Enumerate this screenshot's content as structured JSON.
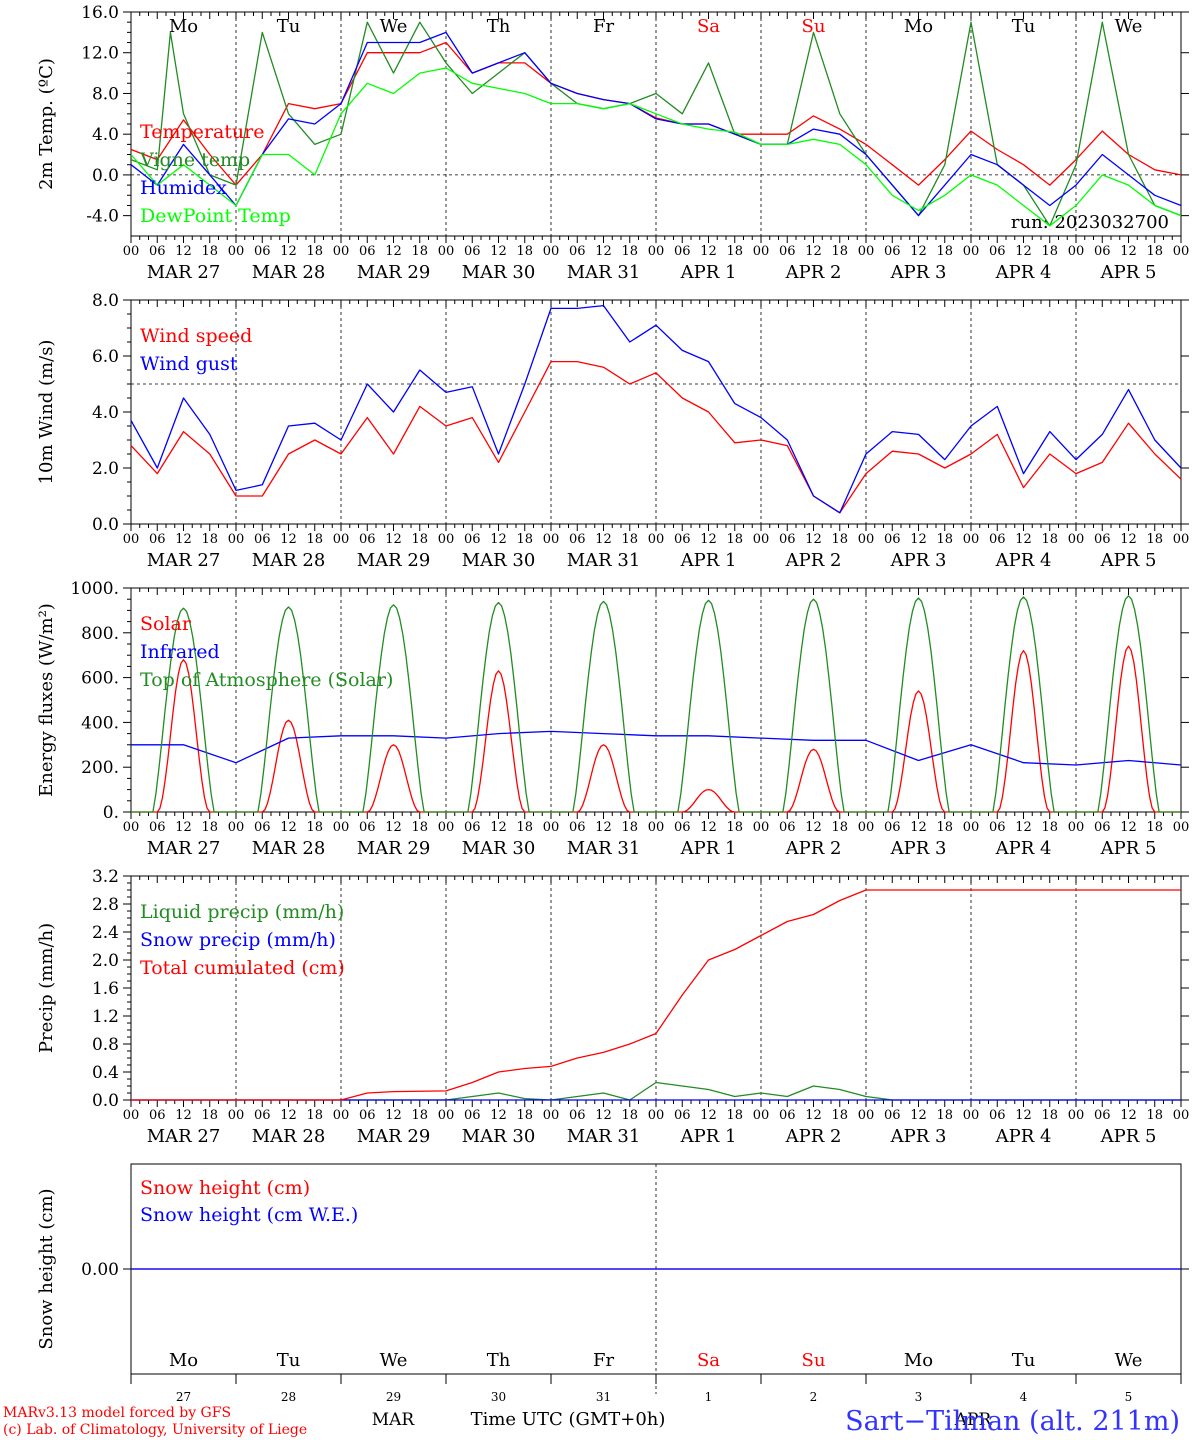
{
  "location": "Sart−Tilman (alt. 211m)",
  "model_credit": "MARv3.13 model forced by GFS",
  "lab_credit": "(c) Lab. of Climatology, University of Liege",
  "time_axis_label": "Time UTC (GMT+0h)",
  "month_labels": [
    "MAR",
    "APR"
  ],
  "run_label": "run: 2023032700",
  "days": [
    {
      "dow": "Mo",
      "date": "MAR 27",
      "num": "27",
      "weekend": false
    },
    {
      "dow": "Tu",
      "date": "MAR 28",
      "num": "28",
      "weekend": false
    },
    {
      "dow": "We",
      "date": "MAR 29",
      "num": "29",
      "weekend": false
    },
    {
      "dow": "Th",
      "date": "MAR 30",
      "num": "30",
      "weekend": false
    },
    {
      "dow": "Fr",
      "date": "MAR 31",
      "num": "31",
      "weekend": false
    },
    {
      "dow": "Sa",
      "date": "APR  1",
      "num": "1",
      "weekend": true
    },
    {
      "dow": "Su",
      "date": "APR  2",
      "num": "2",
      "weekend": true
    },
    {
      "dow": "Mo",
      "date": "APR  3",
      "num": "3",
      "weekend": false
    },
    {
      "dow": "Tu",
      "date": "APR  4",
      "num": "4",
      "weekend": false
    },
    {
      "dow": "We",
      "date": "APR  5",
      "num": "5",
      "weekend": false
    }
  ],
  "hour_labels": [
    "00",
    "06",
    "12",
    "18"
  ],
  "colors": {
    "red": "#ff0000",
    "blue": "#0000ff",
    "green": "#00ff00",
    "dark_green": "#228b22",
    "purple": "#7f007f",
    "axis": "#000000",
    "grid": "#000000",
    "location": "#3333ff"
  },
  "chart_data": [
    {
      "type": "line",
      "ylabel": "2m Temp. (ºC)",
      "ylim": [
        -6,
        16
      ],
      "yticks": [
        "16.0",
        "12.0",
        "8.0",
        "4.0",
        "0.0",
        "-4.0"
      ],
      "ytick_values": [
        16,
        12,
        8,
        4,
        0,
        -4
      ],
      "dashed_ref": 0,
      "x_unit": "hours since MAR 27 00 UTC",
      "series": [
        {
          "name": "Temperature",
          "color": "red",
          "x": [
            0,
            6,
            12,
            18,
            24,
            30,
            36,
            42,
            48,
            54,
            60,
            66,
            72,
            78,
            84,
            90,
            96,
            102,
            108,
            114,
            120,
            126,
            132,
            138,
            144,
            150,
            156,
            162,
            168,
            174,
            180,
            186,
            192,
            198,
            204,
            210,
            216,
            222,
            228,
            234,
            240
          ],
          "y": [
            2.5,
            1.5,
            5.4,
            2,
            -1,
            2,
            7,
            6.5,
            7,
            12,
            12,
            12,
            13,
            10,
            11,
            11,
            9,
            8,
            7.4,
            7,
            5.6,
            5,
            5,
            4,
            4,
            4,
            5.8,
            4.5,
            3,
            1,
            -1,
            1.5,
            4.3,
            2.5,
            1,
            -1,
            1.5,
            4.3,
            2,
            0.5,
            0
          ]
        },
        {
          "name": "Vigne temp",
          "color": "dark_green",
          "x": [
            0,
            6,
            9,
            12,
            15,
            18,
            24,
            30,
            36,
            42,
            48,
            54,
            60,
            66,
            72,
            78,
            84,
            90,
            96,
            102,
            108,
            114,
            120,
            126,
            132,
            138,
            144,
            150,
            156,
            162,
            168,
            174,
            180,
            186,
            192,
            198,
            204,
            210,
            216,
            222,
            228,
            234,
            240
          ],
          "y": [
            1.5,
            0.5,
            14,
            6,
            3,
            0,
            -1,
            14,
            6,
            3,
            4,
            15,
            10,
            15,
            11,
            8,
            10,
            12,
            9,
            7,
            6.5,
            7,
            8,
            6,
            11,
            4,
            3,
            3,
            14,
            6,
            2,
            -1,
            -4,
            1,
            15,
            1,
            -1,
            -5,
            1,
            15,
            2,
            -3,
            -4
          ]
        },
        {
          "name": "Humidex",
          "color": "blue",
          "x": [
            0,
            6,
            12,
            18,
            24,
            30,
            36,
            42,
            48,
            54,
            60,
            66,
            72,
            78,
            84,
            90,
            96,
            102,
            108,
            114,
            120,
            126,
            132,
            138,
            144,
            150,
            156,
            162,
            168,
            174,
            180,
            186,
            192,
            198,
            204,
            210,
            216,
            222,
            228,
            234,
            240
          ],
          "y": [
            1,
            -1,
            3,
            0,
            -3,
            2,
            5.5,
            5,
            7,
            13,
            13,
            13,
            14,
            10,
            11,
            12,
            9,
            8,
            7.4,
            7,
            5.5,
            5,
            5,
            4,
            3,
            3,
            4.5,
            4,
            2,
            -1,
            -4,
            -1,
            2,
            1,
            -1,
            -3,
            -1,
            2,
            0,
            -2,
            -3
          ]
        },
        {
          "name": "DewPoint Temp",
          "color": "green",
          "x": [
            0,
            6,
            12,
            18,
            24,
            30,
            36,
            42,
            48,
            54,
            60,
            66,
            72,
            78,
            84,
            90,
            96,
            102,
            108,
            114,
            120,
            126,
            132,
            138,
            144,
            150,
            156,
            162,
            168,
            174,
            180,
            186,
            192,
            198,
            204,
            210,
            216,
            222,
            228,
            234,
            240
          ],
          "y": [
            2,
            -1,
            1,
            -1,
            -3,
            2,
            2,
            0,
            6,
            9,
            8,
            10,
            10.5,
            9,
            8.5,
            8,
            7,
            7,
            6.5,
            7,
            6,
            5,
            4.5,
            4.2,
            3,
            3,
            3.5,
            3,
            1,
            -2,
            -3.5,
            -2,
            0,
            -1,
            -3,
            -5,
            -3,
            0,
            -1,
            -3,
            -4
          ]
        }
      ],
      "legend": [
        "Temperature",
        "Vigne temp",
        "Humidex",
        "DewPoint Temp"
      ],
      "legend_position": "left"
    },
    {
      "type": "line",
      "ylabel": "10m Wind (m/s)",
      "ylim": [
        0,
        8
      ],
      "yticks": [
        "8.0",
        "6.0",
        "4.0",
        "2.0",
        "0.0"
      ],
      "ytick_values": [
        8,
        6,
        4,
        2,
        0
      ],
      "dashed_ref": 5,
      "series": [
        {
          "name": "Wind speed",
          "color": "red",
          "x": [
            0,
            6,
            12,
            18,
            24,
            30,
            36,
            42,
            48,
            54,
            60,
            66,
            72,
            78,
            84,
            90,
            96,
            102,
            108,
            114,
            120,
            126,
            132,
            138,
            144,
            150,
            156,
            162,
            168,
            174,
            180,
            186,
            192,
            198,
            204,
            210,
            216,
            222,
            228,
            234,
            240
          ],
          "y": [
            2.8,
            1.8,
            3.3,
            2.5,
            1,
            1,
            2.5,
            3,
            2.5,
            3.8,
            2.5,
            4.2,
            3.5,
            3.8,
            2.2,
            4,
            5.8,
            5.8,
            5.6,
            5,
            5.4,
            4.5,
            4,
            2.9,
            3,
            2.8,
            1,
            0.4,
            1.8,
            2.6,
            2.5,
            2,
            2.5,
            3.2,
            1.3,
            2.5,
            1.8,
            2.2,
            3.6,
            2.5,
            1.6
          ]
        },
        {
          "name": "Wind gust",
          "color": "blue",
          "x": [
            0,
            6,
            12,
            18,
            24,
            30,
            36,
            42,
            48,
            54,
            60,
            66,
            72,
            78,
            84,
            90,
            96,
            102,
            108,
            114,
            120,
            126,
            132,
            138,
            144,
            150,
            156,
            162,
            168,
            174,
            180,
            186,
            192,
            198,
            204,
            210,
            216,
            222,
            228,
            234,
            240
          ],
          "y": [
            3.7,
            2,
            4.5,
            3.2,
            1.2,
            1.4,
            3.5,
            3.6,
            3,
            5,
            4,
            5.5,
            4.7,
            4.9,
            2.5,
            5,
            7.7,
            7.7,
            7.8,
            6.5,
            7.1,
            6.2,
            5.8,
            4.3,
            3.8,
            3,
            1,
            0.4,
            2.5,
            3.3,
            3.2,
            2.3,
            3.5,
            4.2,
            1.8,
            3.3,
            2.3,
            3.2,
            4.8,
            3,
            2
          ]
        }
      ],
      "legend": [
        "Wind speed",
        "Wind gust"
      ],
      "legend_position": "left"
    },
    {
      "type": "line",
      "ylabel": "Energy fluxes (W/m²)",
      "ylim": [
        0,
        1000
      ],
      "yticks": [
        "1000.",
        "800.",
        "600.",
        "400.",
        "200.",
        "0."
      ],
      "ytick_values": [
        1000,
        800,
        600,
        400,
        200,
        0
      ],
      "series": [
        {
          "name": "Solar",
          "color": "red",
          "day_peaks": [
            680,
            410,
            300,
            630,
            300,
            100,
            280,
            540,
            720,
            740
          ]
        },
        {
          "name": "Infrared",
          "color": "blue",
          "x": [
            0,
            12,
            24,
            36,
            48,
            60,
            72,
            84,
            96,
            108,
            120,
            132,
            144,
            156,
            168,
            180,
            192,
            204,
            216,
            228,
            240
          ],
          "y": [
            300,
            300,
            220,
            330,
            340,
            340,
            330,
            350,
            360,
            350,
            340,
            340,
            330,
            320,
            320,
            230,
            300,
            220,
            210,
            230,
            210
          ]
        },
        {
          "name": "Top of Atmosphere (Solar)",
          "color": "dark_green",
          "day_peaks": [
            910,
            915,
            925,
            935,
            940,
            945,
            950,
            955,
            960,
            965
          ]
        }
      ],
      "legend": [
        "Solar",
        "Infrared",
        "Top of Atmosphere (Solar)"
      ],
      "legend_position": "left"
    },
    {
      "type": "line",
      "ylabel": "Precip (mm/h)",
      "ylim": [
        0,
        3.2
      ],
      "yticks": [
        "3.2",
        "2.8",
        "2.4",
        "2.0",
        "1.6",
        "1.2",
        "0.8",
        "0.4",
        "0.0"
      ],
      "ytick_values": [
        3.2,
        2.8,
        2.4,
        2.0,
        1.6,
        1.2,
        0.8,
        0.4,
        0.0
      ],
      "series": [
        {
          "name": "Liquid precip (mm/h)",
          "color": "dark_green",
          "x": [
            0,
            72,
            78,
            84,
            90,
            96,
            102,
            108,
            114,
            120,
            126,
            132,
            138,
            144,
            150,
            156,
            162,
            168,
            174,
            180,
            240
          ],
          "y": [
            0,
            0,
            0.05,
            0.1,
            0.02,
            0,
            0.05,
            0.1,
            0,
            0.25,
            0.2,
            0.15,
            0.05,
            0.1,
            0.05,
            0.2,
            0.15,
            0.05,
            0,
            0,
            0
          ]
        },
        {
          "name": "Snow precip (mm/h)",
          "color": "blue",
          "x": [
            0,
            240
          ],
          "y": [
            0,
            0
          ]
        },
        {
          "name": "Total cumulated (cm)",
          "color": "red",
          "x": [
            0,
            48,
            54,
            60,
            72,
            78,
            84,
            90,
            96,
            102,
            108,
            114,
            120,
            126,
            132,
            138,
            144,
            150,
            156,
            162,
            168,
            174,
            180,
            186,
            192,
            198,
            204,
            210,
            216,
            222,
            228,
            234,
            240
          ],
          "y": [
            0,
            0,
            0.1,
            0.12,
            0.13,
            0.25,
            0.4,
            0.45,
            0.48,
            0.6,
            0.68,
            0.8,
            0.95,
            1.5,
            2,
            2.15,
            2.35,
            2.55,
            2.65,
            2.85,
            3,
            3,
            3,
            3,
            3,
            3,
            3,
            3,
            3,
            3,
            3,
            3,
            3
          ]
        }
      ],
      "legend": [
        "Liquid precip (mm/h)",
        "Snow precip (mm/h)",
        "Total cumulated (cm)"
      ],
      "legend_position": "left"
    },
    {
      "type": "line",
      "ylabel": "Snow height (cm)",
      "ylim": [
        -1,
        1
      ],
      "yticks": [
        "0.00"
      ],
      "ytick_values": [
        0
      ],
      "series": [
        {
          "name": "Snow height (cm)",
          "color": "red",
          "x": [
            0,
            240
          ],
          "y": [
            0,
            0
          ]
        },
        {
          "name": "Snow height (cm W.E.)",
          "color": "blue",
          "x": [
            0,
            240
          ],
          "y": [
            0,
            0
          ]
        }
      ],
      "legend": [
        "Snow height (cm)",
        "Snow height (cm W.E.)"
      ],
      "legend_position": "left"
    }
  ]
}
